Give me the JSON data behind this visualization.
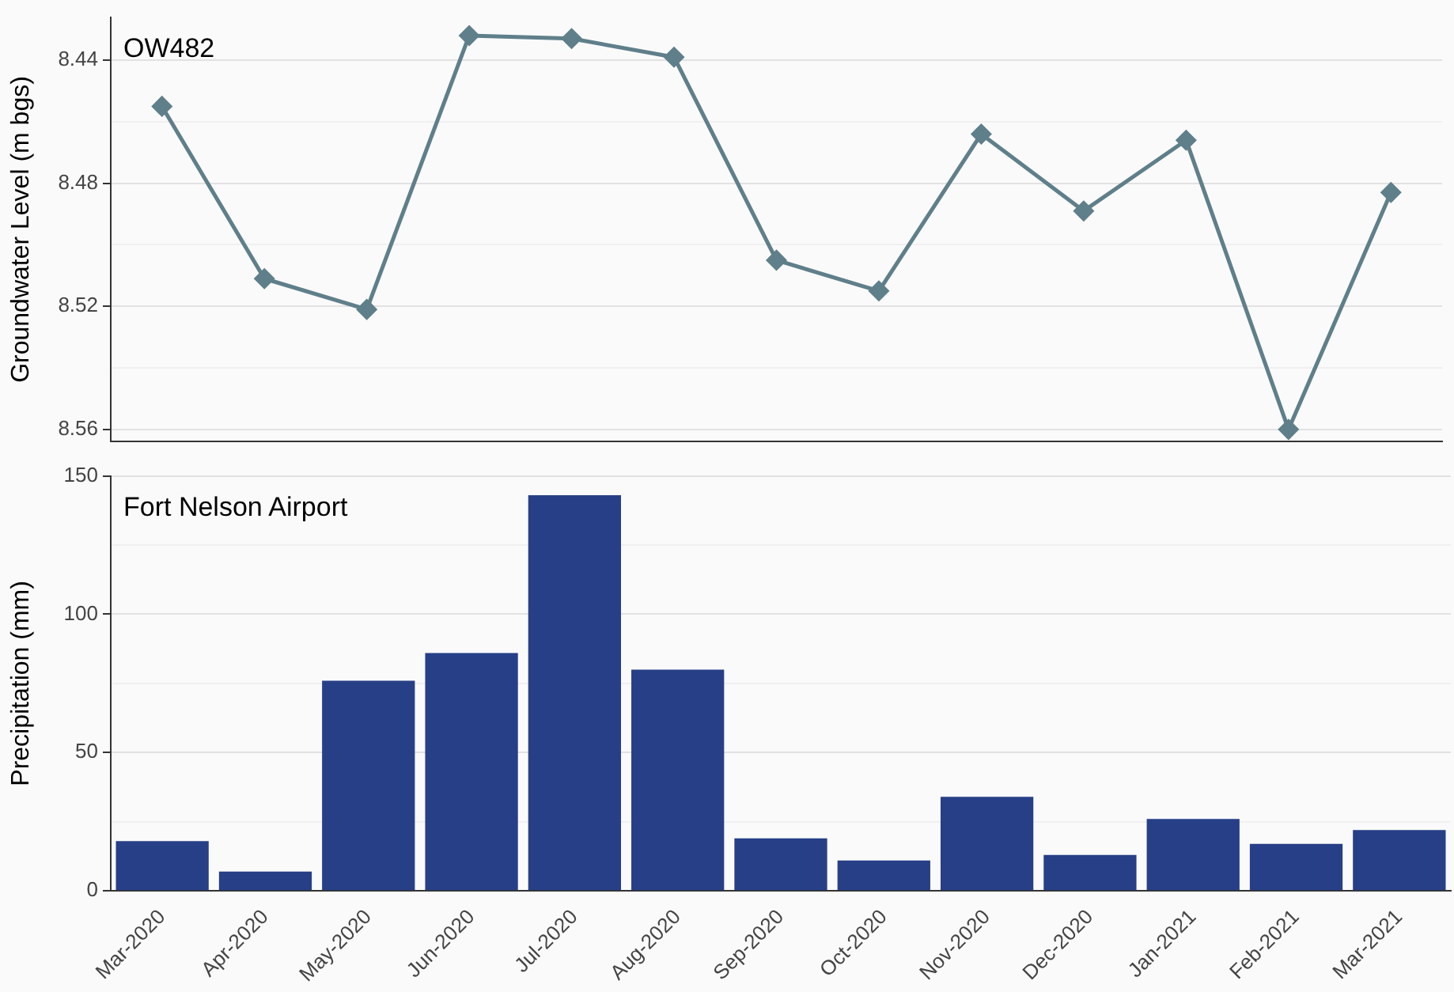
{
  "chart_data": [
    {
      "type": "line",
      "title": "OW482",
      "ylabel": "Groundwater Level (m bgs)",
      "categories": [
        null,
        null,
        null,
        null,
        null,
        null,
        null,
        null,
        null,
        null,
        null,
        null,
        null
      ],
      "series": [
        {
          "color": "#5f7f8a",
          "values": [
            8.455,
            8.511,
            8.521,
            8.432,
            8.433,
            8.439,
            8.505,
            8.515,
            8.464,
            8.489,
            8.466,
            8.56,
            8.483
          ]
        }
      ],
      "ylim": [
        8.564,
        8.426
      ],
      "yticks": [
        {
          "value": 8.56,
          "label": "8.56"
        },
        {
          "value": 8.54,
          "label": null
        },
        {
          "value": 8.52,
          "label": "8.52"
        },
        {
          "value": 8.5,
          "label": null
        },
        {
          "value": 8.48,
          "label": "8.48"
        },
        {
          "value": 8.46,
          "label": null
        },
        {
          "value": 8.44,
          "label": "8.44"
        }
      ],
      "marker": "diamond",
      "line_style": "solid",
      "grid": "y",
      "legend": false,
      "tick_labels": "y"
    },
    {
      "type": "bar",
      "title": "Fort Nelson Airport",
      "ylabel": "Precipitation (mm)",
      "categories": [
        "Mar-2020",
        "Apr-2020",
        "May-2020",
        "Jun-2020",
        "Jul-2020",
        "Aug-2020",
        "Sep-2020",
        "Oct-2020",
        "Nov-2020",
        "Dec-2020",
        "Jan-2021",
        "Feb-2021",
        "Mar-2021"
      ],
      "series": [
        {
          "color": "#273f87",
          "values": [
            18,
            7,
            76,
            86,
            143,
            80,
            19,
            11,
            34,
            13,
            26,
            17,
            22
          ]
        }
      ],
      "ylim": [
        0,
        150
      ],
      "yticks": [
        0,
        {
          "value": 25,
          "label": null
        },
        50,
        {
          "value": 75,
          "label": null
        },
        100,
        {
          "value": 125,
          "label": null
        },
        150
      ],
      "grid": "y",
      "legend": false
    }
  ]
}
